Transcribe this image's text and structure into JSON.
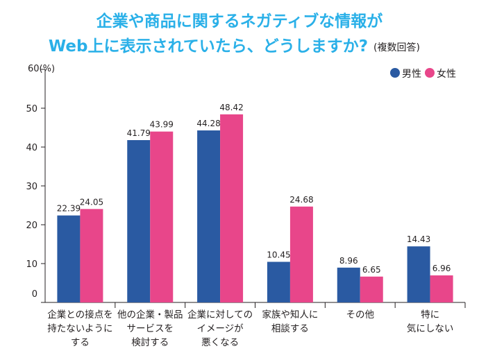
{
  "chart_data": {
    "type": "bar",
    "title_line1": "企業や商品に関するネガティブな情報が",
    "title_line2": "Web上に表示されていたら、どうしますか?",
    "subtitle": "(複数回答)",
    "ylabel": "60(%)",
    "ylim": [
      0,
      60
    ],
    "yticks": [
      "0",
      "10",
      "20",
      "30",
      "40",
      "50"
    ],
    "grid": false,
    "legend_position": "top-right",
    "categories": [
      [
        "企業との接点を",
        "持たないように",
        "する"
      ],
      [
        "他の企業・製品",
        "サービスを",
        "検討する"
      ],
      [
        "企業に対しての",
        "イメージが",
        "悪くなる"
      ],
      [
        "家族や知人に",
        "相談する"
      ],
      [
        "その他"
      ],
      [
        "特に",
        "気にしない"
      ]
    ],
    "series": [
      {
        "name": "男性",
        "color": "#2a5aa2",
        "values": [
          22.39,
          41.79,
          44.28,
          10.45,
          8.96,
          14.43
        ],
        "labels": [
          "22.39",
          "41.79",
          "44.28",
          "10.45",
          "8.96",
          "14.43"
        ]
      },
      {
        "name": "女性",
        "color": "#e8468a",
        "values": [
          24.05,
          43.99,
          48.42,
          24.68,
          6.65,
          6.96
        ],
        "labels": [
          "24.05",
          "43.99",
          "48.42",
          "24.68",
          "6.65",
          "6.96"
        ]
      }
    ],
    "title_color": "#2ab0e8"
  }
}
